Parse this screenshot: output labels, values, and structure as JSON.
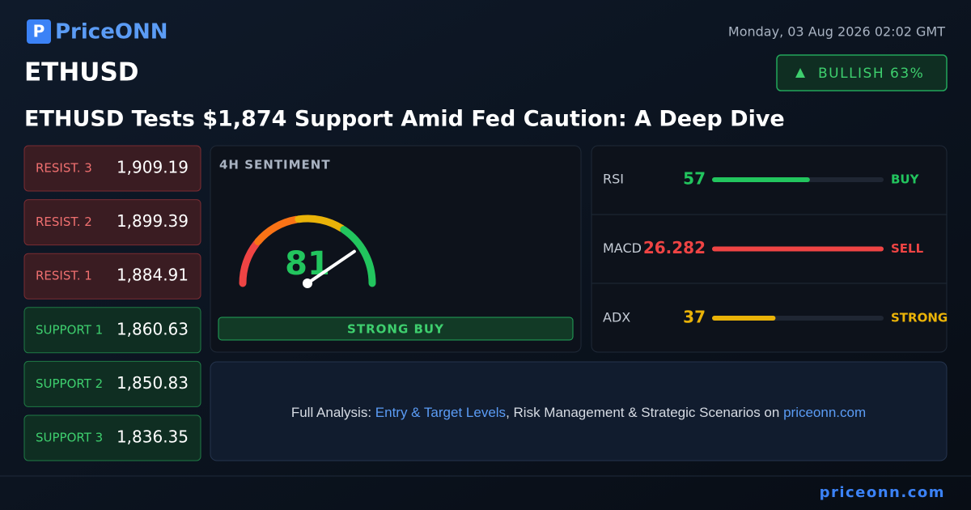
{
  "header": {
    "logo": "PriceONN",
    "date": "Monday, 03 Aug 2026 02:02 GMT",
    "symbol": "ETHUSD",
    "badge": "BULLISH 63%",
    "title": "ETHUSD Tests $1,874 Support Amid Fed Caution: A Deep Dive"
  },
  "levels": [
    {
      "label": "RESIST. 3",
      "value": "1,909.19",
      "kind": "resist"
    },
    {
      "label": "RESIST. 2",
      "value": "1,899.39",
      "kind": "resist"
    },
    {
      "label": "RESIST. 1",
      "value": "1,884.91",
      "kind": "resist"
    },
    {
      "label": "SUPPORT 1",
      "value": "1,860.63",
      "kind": "support"
    },
    {
      "label": "SUPPORT 2",
      "value": "1,850.83",
      "kind": "support"
    },
    {
      "label": "SUPPORT 3",
      "value": "1,836.35",
      "kind": "support"
    }
  ],
  "sentiment": {
    "title": "4H SENTIMENT",
    "value": 81,
    "verdict": "STRONG BUY"
  },
  "indicators": [
    {
      "name": "RSI",
      "value": 57,
      "signal": "BUY",
      "color": "#22c55e"
    },
    {
      "name": "MACD",
      "value": 26.282,
      "signal": "SELL",
      "color": "#ef4444"
    },
    {
      "name": "ADX",
      "value": 37,
      "signal": "STRONG",
      "color": "#eab308"
    }
  ],
  "cta": {
    "lead": "Full Analysis:",
    "highlight": "Entry & Target Levels",
    "rest": ", Risk Management & Strategic Scenarios on",
    "site": "priceonn.com"
  },
  "footer": {
    "site": "priceonn.com"
  }
}
